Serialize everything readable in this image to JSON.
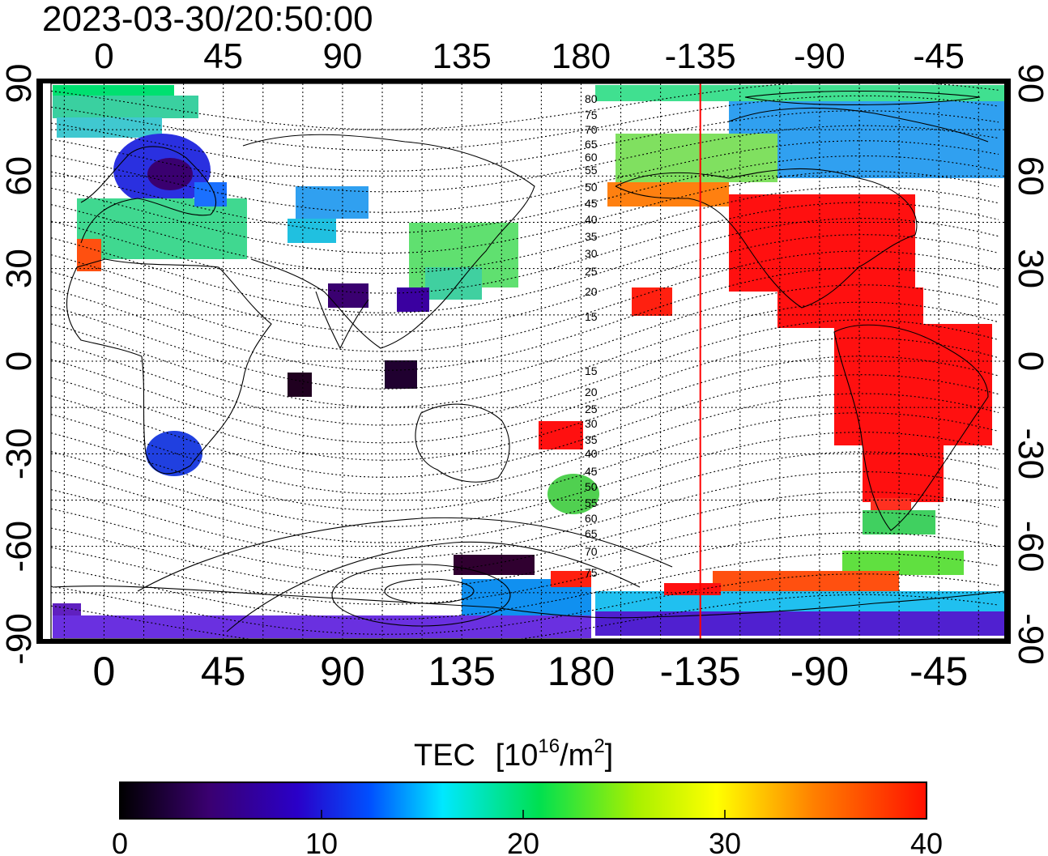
{
  "timestamp": "2023-03-30/20:50:00",
  "map": {
    "lon_ticks": [
      {
        "lon": 0,
        "label": "0"
      },
      {
        "lon": 45,
        "label": "45"
      },
      {
        "lon": 90,
        "label": "90"
      },
      {
        "lon": 135,
        "label": "135"
      },
      {
        "lon": 180,
        "label": "180"
      },
      {
        "lon": 225,
        "label": "-135"
      },
      {
        "lon": 270,
        "label": "-90"
      },
      {
        "lon": 315,
        "label": "-45"
      }
    ],
    "lat_ticks": [
      {
        "lat": 90,
        "label": "90"
      },
      {
        "lat": 60,
        "label": "60"
      },
      {
        "lat": 30,
        "label": "30"
      },
      {
        "lat": 0,
        "label": "0"
      },
      {
        "lat": -30,
        "label": "-30"
      },
      {
        "lat": -60,
        "label": "-60"
      },
      {
        "lat": -90,
        "label": "-90"
      }
    ],
    "lon_range": [
      -20,
      340
    ],
    "lat_range": [
      -90,
      90
    ],
    "terminator_lon": -135,
    "mlat_labels": [
      "80",
      "75",
      "70",
      "65",
      "60",
      "55",
      "50",
      "45",
      "40",
      "35",
      "30",
      "25",
      "20",
      "15",
      "15",
      "20",
      "25",
      "30",
      "35",
      "40",
      "45",
      "50",
      "55",
      "60",
      "65",
      "70",
      "75"
    ]
  },
  "colorbar": {
    "title": "TEC",
    "unit": "[10",
    "unit_sup": "16",
    "unit_mid": "/m",
    "unit_sup2": "2",
    "unit_end": "]",
    "min": 0,
    "max": 40,
    "tick_labels": [
      "0",
      "10",
      "20",
      "30",
      "40"
    ],
    "colormap": [
      "#000000",
      "#3a0070",
      "#2a00c8",
      "#0050ff",
      "#00e8ff",
      "#00e050",
      "#a8f000",
      "#ffff00",
      "#ff8000",
      "#ff1000"
    ]
  },
  "colors": {
    "terminator": "#ff0000",
    "ink": "#000000"
  }
}
